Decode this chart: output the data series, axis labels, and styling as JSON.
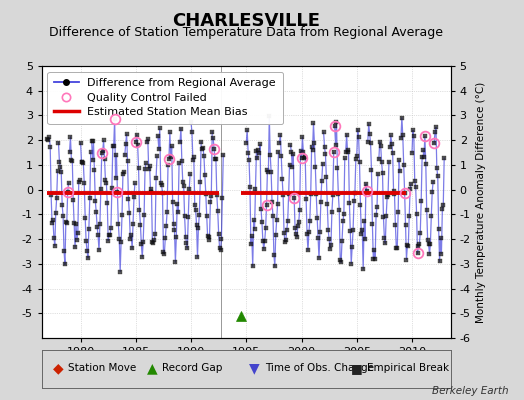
{
  "title": "CHARLESVILLE",
  "subtitle": "Difference of Station Temperature Data from Regional Average",
  "ylabel_right": "Monthly Temperature Anomaly Difference (°C)",
  "credit": "Berkeley Earth",
  "xlim": [
    1976.5,
    2013.5
  ],
  "ylim": [
    -6,
    5
  ],
  "yticks_left": [
    -5,
    -4,
    -3,
    -2,
    -1,
    0,
    1,
    2,
    3,
    4,
    5
  ],
  "yticks_right": [
    -6,
    -5,
    -4,
    -3,
    -2,
    -1,
    0,
    1,
    2,
    3,
    4,
    5
  ],
  "xticks": [
    1980,
    1985,
    1990,
    1995,
    2000,
    2005,
    2010
  ],
  "bias1": -0.12,
  "bias2": -0.12,
  "bias1_xstart": 1977.0,
  "bias1_xend": 1992.5,
  "bias2_xstart": 1994.5,
  "bias2_xend": 2009.5,
  "gap_x": 1994.5,
  "gap_y": -5.1,
  "vline_x": 1992.75,
  "background_color": "#d8d8d8",
  "plot_bg_color": "#ffffff",
  "line_color": "#4444dd",
  "bias_color": "#dd0000",
  "qc_color": "#ff77bb",
  "data_color": "#111111",
  "title_fontsize": 13,
  "subtitle_fontsize": 9,
  "legend_fontsize": 8,
  "tick_labelsize": 8
}
